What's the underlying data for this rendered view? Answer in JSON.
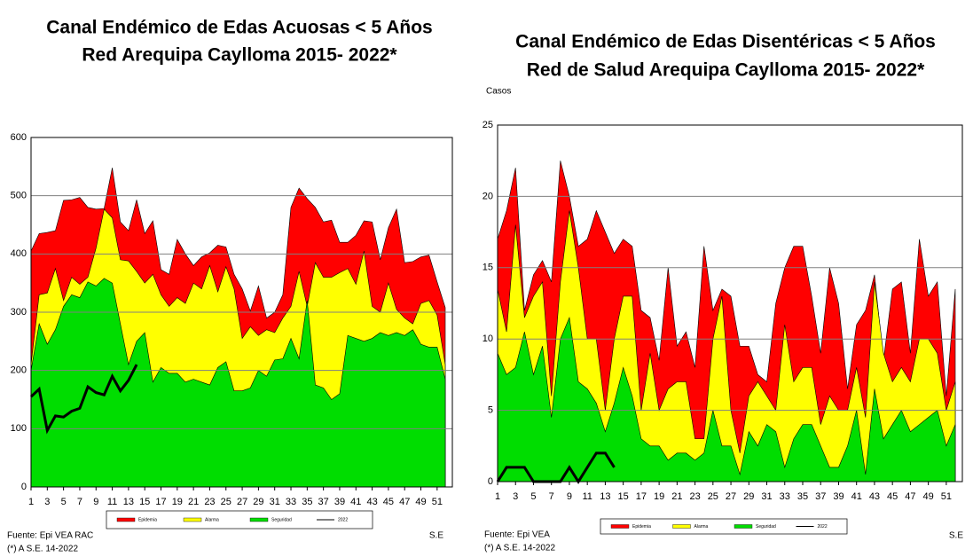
{
  "chart_data": [
    {
      "type": "area",
      "title": "Canal Endémico de Edas Acuosas  < 5 Años",
      "subtitle": "Red Arequipa Caylloma 2015- 2022*",
      "x_label": "S.E",
      "source": "Fuente: Epi VEA RAC",
      "note": "(*) A S.E.  14-2022",
      "x": [
        1,
        2,
        3,
        4,
        5,
        6,
        7,
        8,
        9,
        10,
        11,
        12,
        13,
        14,
        15,
        16,
        17,
        18,
        19,
        20,
        21,
        22,
        23,
        24,
        25,
        26,
        27,
        28,
        29,
        30,
        31,
        32,
        33,
        34,
        35,
        36,
        37,
        38,
        39,
        40,
        41,
        42,
        43,
        44,
        45,
        46,
        47,
        48,
        49,
        50,
        51,
        52
      ],
      "xlim": [
        1,
        52
      ],
      "xticks": [
        1,
        3,
        5,
        7,
        9,
        11,
        13,
        15,
        17,
        19,
        21,
        23,
        25,
        27,
        29,
        31,
        33,
        35,
        37,
        39,
        41,
        43,
        45,
        47,
        49,
        51
      ],
      "ylim": [
        0,
        600
      ],
      "yticks": [
        0,
        100,
        200,
        300,
        400,
        500,
        600
      ],
      "grid": true,
      "series": [
        {
          "name": "Epidemia",
          "color": "#ff0000",
          "values": [
            405,
            435,
            437,
            440,
            492,
            493,
            497,
            480,
            477,
            478,
            548,
            455,
            440,
            493,
            435,
            457,
            373,
            365,
            425,
            400,
            380,
            395,
            402,
            415,
            412,
            365,
            340,
            302,
            345,
            290,
            300,
            330,
            480,
            513,
            495,
            480,
            455,
            458,
            420,
            420,
            432,
            457,
            455,
            390,
            445,
            477,
            385,
            387,
            395,
            398,
            352,
            308
          ]
        },
        {
          "name": "Alarma",
          "color": "#ffff00",
          "values": [
            210,
            330,
            333,
            375,
            320,
            360,
            348,
            360,
            410,
            477,
            462,
            390,
            388,
            370,
            350,
            365,
            330,
            310,
            325,
            315,
            350,
            340,
            380,
            335,
            378,
            340,
            255,
            275,
            260,
            270,
            265,
            290,
            310,
            370,
            310,
            385,
            360,
            360,
            368,
            375,
            348,
            405,
            310,
            300,
            350,
            305,
            290,
            280,
            315,
            320,
            295,
            210
          ]
        },
        {
          "name": "Seguridad",
          "color": "#00dd00",
          "values": [
            200,
            280,
            245,
            270,
            310,
            330,
            325,
            352,
            345,
            358,
            350,
            280,
            210,
            250,
            265,
            180,
            205,
            195,
            195,
            180,
            185,
            180,
            175,
            205,
            215,
            165,
            165,
            170,
            200,
            190,
            218,
            220,
            255,
            220,
            320,
            175,
            170,
            150,
            160,
            260,
            255,
            250,
            255,
            265,
            260,
            265,
            260,
            270,
            245,
            240,
            240,
            185
          ]
        },
        {
          "name": "2022",
          "color": "#000000",
          "line": true,
          "values": [
            155,
            168,
            97,
            122,
            120,
            130,
            135,
            172,
            162,
            158,
            190,
            165,
            183,
            210,
            null,
            null,
            null,
            null,
            null,
            null,
            null,
            null,
            null,
            null,
            null,
            null,
            null,
            null,
            null,
            null,
            null,
            null,
            null,
            null,
            null,
            null,
            null,
            null,
            null,
            null,
            null,
            null,
            null,
            null,
            null,
            null,
            null,
            null,
            null,
            null,
            null,
            null
          ]
        }
      ]
    },
    {
      "type": "area",
      "title": "Canal Endémico de Edas Disentéricas  < 5 Años",
      "subtitle": "Red  de Salud Arequipa Caylloma 2015- 2022*",
      "y_label": "Casos",
      "x_label": "S.E",
      "source": "Fuente: Epi VEA",
      "note": "(*) A S.E. 14-2022",
      "x": [
        1,
        2,
        3,
        4,
        5,
        6,
        7,
        8,
        9,
        10,
        11,
        12,
        13,
        14,
        15,
        16,
        17,
        18,
        19,
        20,
        21,
        22,
        23,
        24,
        25,
        26,
        27,
        28,
        29,
        30,
        31,
        32,
        33,
        34,
        35,
        36,
        37,
        38,
        39,
        40,
        41,
        42,
        43,
        44,
        45,
        46,
        47,
        48,
        49,
        50,
        51,
        52
      ],
      "xlim": [
        1,
        52
      ],
      "xticks": [
        1,
        3,
        5,
        7,
        9,
        11,
        13,
        15,
        17,
        19,
        21,
        23,
        25,
        27,
        29,
        31,
        33,
        35,
        37,
        39,
        41,
        43,
        45,
        47,
        49,
        51
      ],
      "ylim": [
        0,
        25
      ],
      "yticks": [
        0,
        5,
        10,
        15,
        20,
        25
      ],
      "grid": true,
      "series": [
        {
          "name": "Epidemia",
          "color": "#ff0000",
          "values": [
            17,
            19,
            22,
            12,
            14.5,
            15.5,
            14,
            22.5,
            20,
            16.5,
            17,
            19,
            17.5,
            16,
            17,
            16.5,
            12,
            11.5,
            8.5,
            15,
            9.5,
            10.5,
            8,
            16.5,
            12,
            13.5,
            13,
            9.5,
            9.5,
            7.5,
            7,
            12.5,
            15,
            16.5,
            16.5,
            13,
            9,
            15,
            12.5,
            6.5,
            11,
            12,
            14.5,
            8.5,
            13.5,
            14,
            9,
            17,
            13,
            14,
            6,
            13.5
          ]
        },
        {
          "name": "Alarma",
          "color": "#ffff00",
          "values": [
            13.5,
            10.5,
            18,
            11.5,
            13,
            14,
            6,
            14,
            19,
            15,
            10,
            10,
            5,
            10,
            13,
            13,
            5,
            9,
            5,
            6.5,
            7,
            7,
            3,
            3,
            10,
            13,
            5,
            2,
            6,
            7,
            6,
            5,
            11,
            7,
            8,
            8,
            4,
            6,
            5,
            5,
            8,
            4.5,
            14,
            9,
            7,
            8,
            7,
            10,
            10,
            9,
            5,
            7
          ]
        },
        {
          "name": "Seguridad",
          "color": "#00dd00",
          "values": [
            9,
            7.5,
            8,
            10.5,
            7.5,
            9.5,
            4.5,
            10,
            11.5,
            7,
            6.5,
            5.5,
            3.5,
            5.5,
            8,
            6,
            3,
            2.5,
            2.5,
            1.5,
            2,
            2,
            1.5,
            2,
            5,
            2.5,
            2.5,
            0.5,
            3.5,
            2.5,
            4,
            3.5,
            1,
            3,
            4,
            4,
            2.5,
            1,
            1,
            2.5,
            5,
            0.5,
            6.5,
            3,
            4,
            5,
            3.5,
            4,
            4.5,
            5,
            2.5,
            4
          ]
        },
        {
          "name": "2022",
          "color": "#000000",
          "line": true,
          "values": [
            0,
            1,
            1,
            1,
            0,
            0,
            0,
            0,
            1,
            0,
            1,
            2,
            2,
            1,
            null,
            null,
            null,
            null,
            null,
            null,
            null,
            null,
            null,
            null,
            null,
            null,
            null,
            null,
            null,
            null,
            null,
            null,
            null,
            null,
            null,
            null,
            null,
            null,
            null,
            null,
            null,
            null,
            null,
            null,
            null,
            null,
            null,
            null,
            null,
            null,
            null,
            null
          ]
        }
      ]
    }
  ]
}
